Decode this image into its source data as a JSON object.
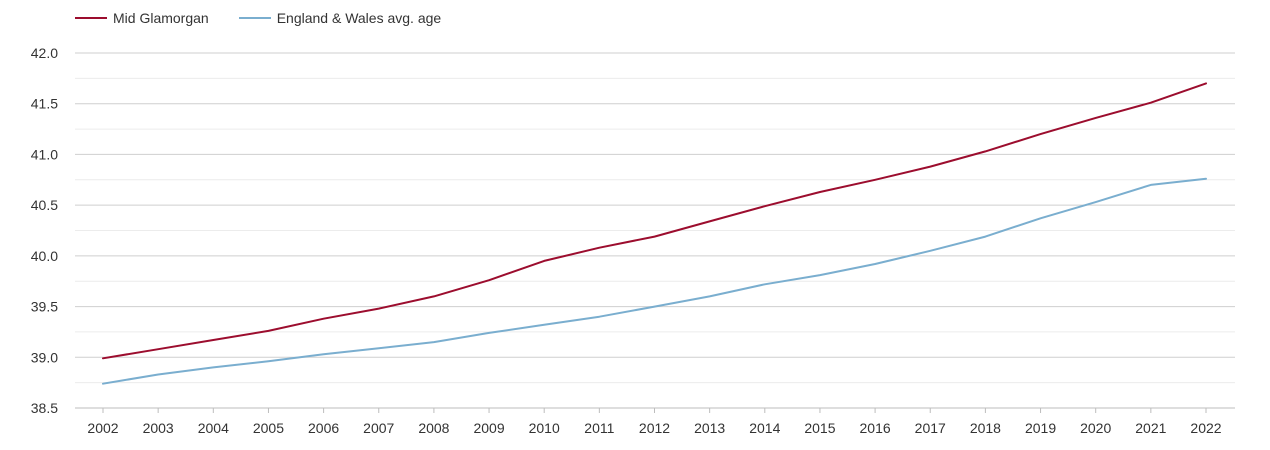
{
  "chart_data": {
    "type": "line",
    "categories": [
      "2002",
      "2003",
      "2004",
      "2005",
      "2006",
      "2007",
      "2008",
      "2009",
      "2010",
      "2011",
      "2012",
      "2013",
      "2014",
      "2015",
      "2016",
      "2017",
      "2018",
      "2019",
      "2020",
      "2021",
      "2022"
    ],
    "series": [
      {
        "name": "Mid Glamorgan",
        "color": "#9c0d2e",
        "values": [
          38.99,
          39.08,
          39.17,
          39.26,
          39.38,
          39.48,
          39.6,
          39.76,
          39.95,
          40.08,
          40.19,
          40.34,
          40.49,
          40.63,
          40.75,
          40.88,
          41.03,
          41.2,
          41.36,
          41.51,
          41.7
        ]
      },
      {
        "name": "England & Wales avg. age",
        "color": "#7aaecf",
        "values": [
          38.74,
          38.83,
          38.9,
          38.96,
          39.03,
          39.09,
          39.15,
          39.24,
          39.32,
          39.4,
          39.5,
          39.6,
          39.72,
          39.81,
          39.92,
          40.05,
          40.19,
          40.37,
          40.53,
          40.7,
          40.76
        ]
      }
    ],
    "yticks": [
      "38.5",
      "39.0",
      "39.5",
      "40.0",
      "40.5",
      "41.0",
      "41.5",
      "42.0"
    ],
    "ylim": [
      38.5,
      42.0
    ],
    "grid": true,
    "legend": "top-left",
    "title": "",
    "xlabel": "",
    "ylabel": ""
  }
}
